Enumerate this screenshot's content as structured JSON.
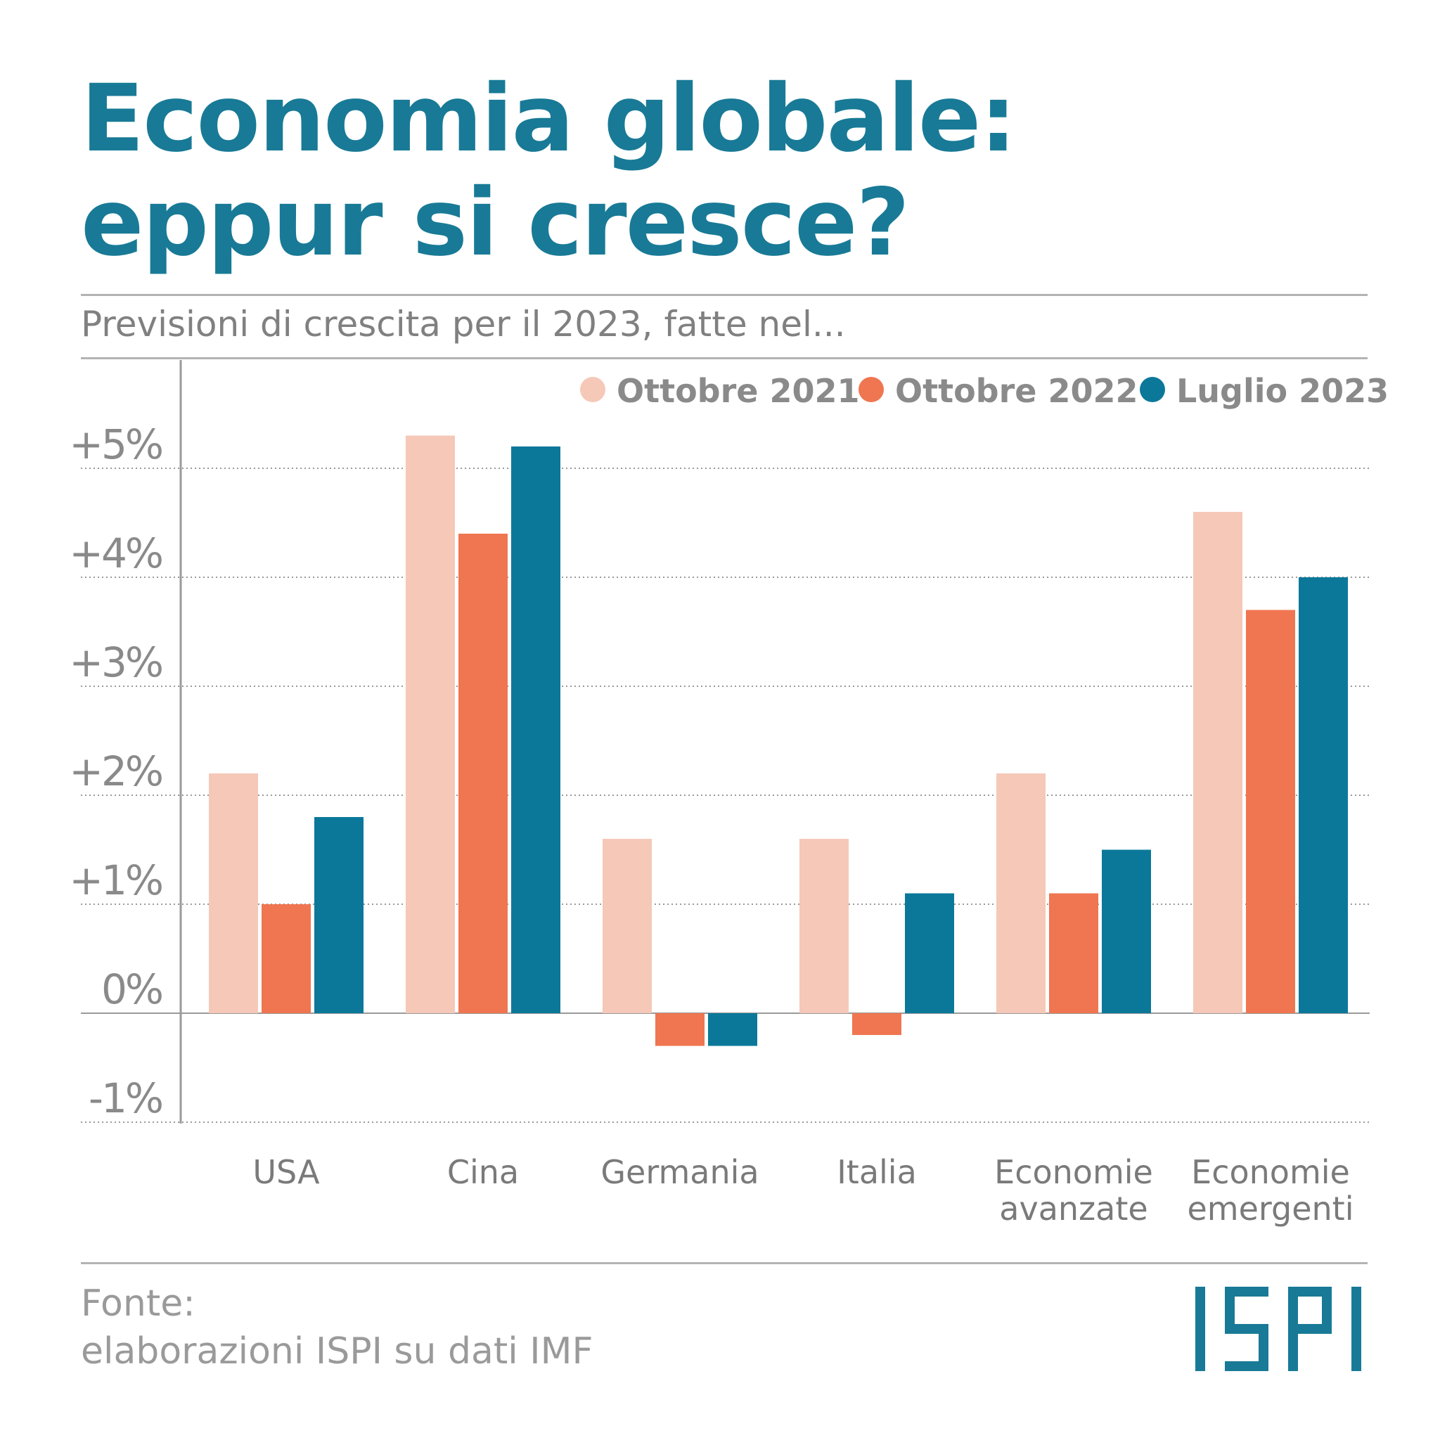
{
  "title": {
    "line1": "Economia globale:",
    "line2": "eppur si cresce?"
  },
  "subtitle": "Previsioni di crescita per il 2023, fatte nel...",
  "source": {
    "label": "Fonte:",
    "text": "elaborazioni ISPI su dati IMF"
  },
  "logo": {
    "text": "ISPI",
    "color": "#187a96"
  },
  "chart_data": {
    "type": "bar",
    "categories": [
      [
        "USA"
      ],
      [
        "Cina"
      ],
      [
        "Germania"
      ],
      [
        "Italia"
      ],
      [
        "Economie",
        "avanzate"
      ],
      [
        "Economie",
        "emergenti"
      ]
    ],
    "series": [
      {
        "name": "Ottobre 2021",
        "color": "#f5c8b8",
        "values": [
          2.2,
          5.3,
          1.6,
          1.6,
          2.2,
          4.6
        ]
      },
      {
        "name": "Ottobre 2022",
        "color": "#ef7650",
        "values": [
          1.0,
          4.4,
          -0.3,
          -0.2,
          1.1,
          3.7
        ]
      },
      {
        "name": "Luglio 2023",
        "color": "#0b789a",
        "values": [
          1.8,
          5.2,
          -0.3,
          1.1,
          1.5,
          4.0
        ]
      }
    ],
    "y_ticks": [
      {
        "value": 5,
        "label": "+5%"
      },
      {
        "value": 4,
        "label": "+4%"
      },
      {
        "value": 3,
        "label": "+3%"
      },
      {
        "value": 2,
        "label": "+2%"
      },
      {
        "value": 1,
        "label": "+1%"
      },
      {
        "value": 0,
        "label": "0%"
      },
      {
        "value": -1,
        "label": "-1%"
      }
    ],
    "ylim": [
      -1,
      5.5
    ],
    "grid": true,
    "legend_position": "top-right"
  }
}
